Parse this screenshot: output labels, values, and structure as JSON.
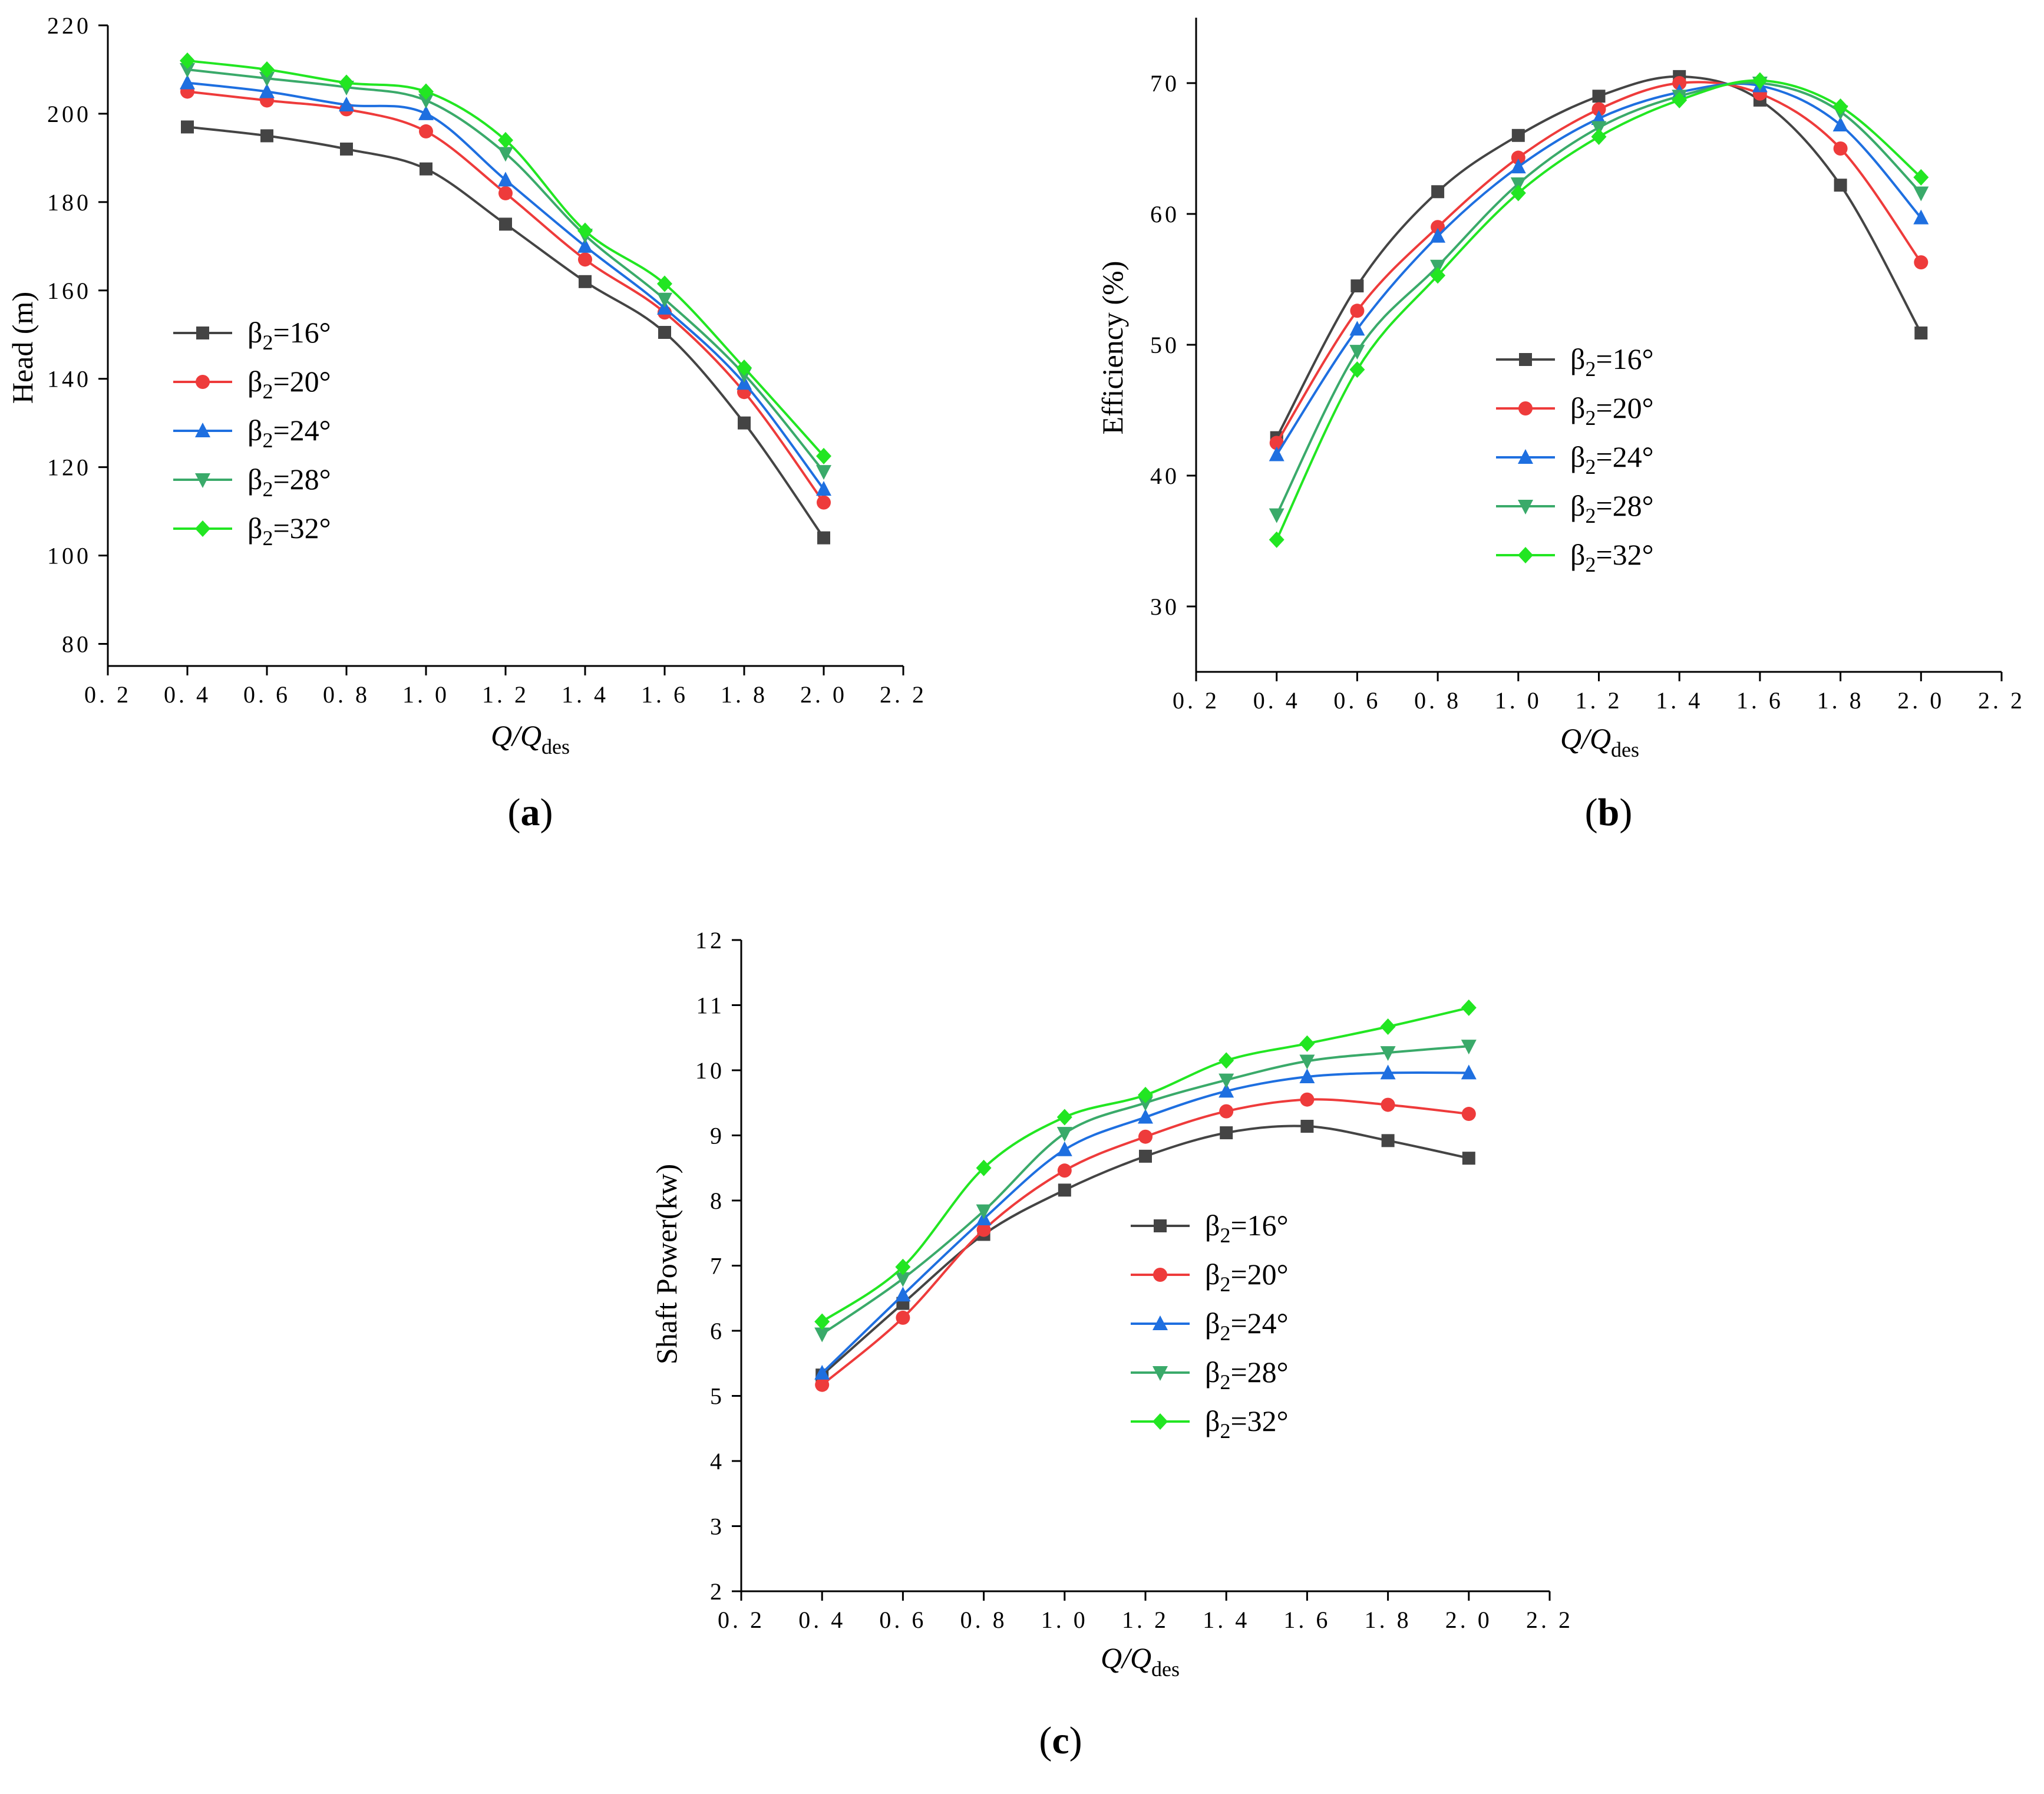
{
  "colors": {
    "beta16": "#444444",
    "beta20": "#ee3b3b",
    "beta24": "#1e6fe0",
    "beta28": "#3aaa6a",
    "beta32": "#22e622"
  },
  "legend_labels": [
    "β2=16°",
    "β2=20°",
    "β2=24°",
    "β2=28°",
    "β2=32°"
  ],
  "chart_data": [
    {
      "id": "a",
      "type": "line",
      "panel_label": "(a)",
      "xlabel": "Q/Qdes",
      "ylabel": "Head (m)",
      "xlim": [
        0.2,
        2.2
      ],
      "ylim": [
        75,
        220
      ],
      "xticks": [
        "0.2",
        "0.4",
        "0.6",
        "0.8",
        "1.0",
        "1.2",
        "1.4",
        "1.6",
        "1.8",
        "2.0",
        "2.2"
      ],
      "yticks": [
        "80",
        "100",
        "120",
        "140",
        "160",
        "180",
        "200",
        "220"
      ],
      "x": [
        0.4,
        0.6,
        0.8,
        1.0,
        1.2,
        1.4,
        1.6,
        1.8,
        2.0
      ],
      "legend_position": "center-left",
      "series": [
        {
          "name": "β2=16°",
          "marker": "square",
          "values": [
            197,
            195,
            192,
            187.5,
            175,
            162,
            150.5,
            130,
            104
          ]
        },
        {
          "name": "β2=20°",
          "marker": "circle",
          "values": [
            205,
            203,
            201,
            196,
            182,
            167,
            155,
            137,
            112
          ]
        },
        {
          "name": "β2=24°",
          "marker": "triangle-up",
          "values": [
            207,
            205,
            202,
            200,
            185,
            170,
            156,
            139,
            115
          ]
        },
        {
          "name": "β2=28°",
          "marker": "triangle-down",
          "values": [
            210,
            208,
            206,
            203,
            191,
            172.5,
            158,
            141,
            119
          ]
        },
        {
          "name": "β2=32°",
          "marker": "diamond",
          "values": [
            212,
            210,
            207,
            205,
            194,
            173.5,
            161.5,
            142.5,
            122.5
          ]
        }
      ]
    },
    {
      "id": "b",
      "type": "line",
      "panel_label": "(b)",
      "xlabel": "Q/Qdes",
      "ylabel": "Efficiency (%)",
      "xlim": [
        0.2,
        2.2
      ],
      "ylim": [
        25,
        75
      ],
      "xticks": [
        "0.2",
        "0.4",
        "0.6",
        "0.8",
        "1.0",
        "1.2",
        "1.4",
        "1.6",
        "1.8",
        "2.0",
        "2.2"
      ],
      "yticks": [
        "30",
        "40",
        "50",
        "60",
        "70"
      ],
      "x": [
        0.4,
        0.6,
        0.8,
        1.0,
        1.2,
        1.4,
        1.6,
        1.8,
        2.0
      ],
      "legend_position": "center-right",
      "series": [
        {
          "name": "β2=16°",
          "marker": "square",
          "values": [
            42.9,
            54.5,
            61.7,
            66.0,
            69.0,
            70.5,
            68.7,
            62.2,
            50.9
          ]
        },
        {
          "name": "β2=20°",
          "marker": "circle",
          "values": [
            42.5,
            52.6,
            59.0,
            64.3,
            68.0,
            70.0,
            69.2,
            65.0,
            56.3
          ]
        },
        {
          "name": "β2=24°",
          "marker": "triangle-up",
          "values": [
            41.6,
            51.2,
            58.3,
            63.6,
            67.3,
            69.3,
            69.8,
            66.8,
            59.7
          ]
        },
        {
          "name": "β2=28°",
          "marker": "triangle-down",
          "values": [
            37.0,
            49.5,
            56.0,
            62.3,
            66.6,
            69.0,
            70.0,
            67.8,
            61.6
          ]
        },
        {
          "name": "β2=32°",
          "marker": "diamond",
          "values": [
            35.1,
            48.1,
            55.3,
            61.6,
            65.9,
            68.7,
            70.2,
            68.2,
            62.8
          ]
        }
      ]
    },
    {
      "id": "c",
      "type": "line",
      "panel_label": "(c)",
      "xlabel": "Q/Qdes",
      "ylabel": "Shaft Power(kw)",
      "xlim": [
        0.2,
        2.2
      ],
      "ylim": [
        2,
        12
      ],
      "xticks": [
        "0.2",
        "0.4",
        "0.6",
        "0.8",
        "1.0",
        "1.2",
        "1.4",
        "1.6",
        "1.8",
        "2.0",
        "2.2"
      ],
      "yticks": [
        "2",
        "3",
        "4",
        "5",
        "6",
        "7",
        "8",
        "9",
        "10",
        "11",
        "12"
      ],
      "x": [
        0.4,
        0.6,
        0.8,
        1.0,
        1.2,
        1.4,
        1.6,
        1.8,
        2.0
      ],
      "legend_position": "center-right",
      "series": [
        {
          "name": "β2=16°",
          "marker": "square",
          "values": [
            5.32,
            6.42,
            7.48,
            8.16,
            8.68,
            9.04,
            9.14,
            8.92,
            8.65
          ]
        },
        {
          "name": "β2=20°",
          "marker": "circle",
          "values": [
            5.17,
            6.2,
            7.55,
            8.46,
            8.98,
            9.37,
            9.55,
            9.47,
            9.33
          ]
        },
        {
          "name": "β2=24°",
          "marker": "triangle-up",
          "values": [
            5.35,
            6.55,
            7.72,
            8.78,
            9.28,
            9.68,
            9.9,
            9.96,
            9.96
          ]
        },
        {
          "name": "β2=28°",
          "marker": "triangle-down",
          "values": [
            5.95,
            6.8,
            7.84,
            9.03,
            9.5,
            9.85,
            10.14,
            10.27,
            10.37
          ]
        },
        {
          "name": "β2=32°",
          "marker": "diamond",
          "values": [
            6.14,
            6.98,
            8.5,
            9.28,
            9.62,
            10.15,
            10.41,
            10.67,
            10.96
          ]
        }
      ]
    }
  ]
}
